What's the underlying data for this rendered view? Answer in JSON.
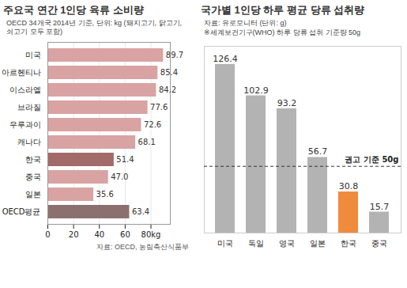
{
  "chart_data": [
    {
      "type": "bar",
      "orientation": "horizontal",
      "title": "주요국 연간 1인당 육류 소비량",
      "subtitle": "OECD 34개국 2014년 기준, 단위: kg (돼지고기, 닭고기, 쇠고기 모두 포함)",
      "source": "자료: OECD, 농림축산식품부",
      "categories": [
        "미국",
        "아르헨티나",
        "이스라엘",
        "브라질",
        "우루과이",
        "캐나다",
        "한국",
        "중국",
        "일본",
        "OECD평균"
      ],
      "values": [
        89.7,
        85.4,
        84.2,
        77.6,
        72.6,
        68.1,
        51.4,
        47.0,
        35.6,
        63.4
      ],
      "value_labels": [
        "89.7",
        "85.4",
        "84.2",
        "77.6",
        "72.6",
        "68.1",
        "51.4",
        "47.0",
        "35.6",
        "63.4"
      ],
      "colors": [
        "#d9a3a3",
        "#d9a3a3",
        "#d9a3a3",
        "#d9a3a3",
        "#d9a3a3",
        "#d9a3a3",
        "#a36a6a",
        "#d9a3a3",
        "#d9a3a3",
        "#8c7070"
      ],
      "xlim": [
        0,
        95
      ],
      "xticks": [
        0,
        20,
        40,
        60,
        {
          "value": 80,
          "label": "80kg"
        }
      ],
      "grid": true,
      "data_labels": true
    },
    {
      "type": "bar",
      "title": "국가별 1인당 하루 평균 당류 섭취량",
      "subtitle": "자료: 유로모니터 (단위: g)",
      "note": "※세계보건기구(WHO) 하루 당류 섭취 기준량 50g",
      "categories": [
        "미국",
        "독일",
        "영국",
        "일본",
        "한국",
        "중국"
      ],
      "values": [
        126.4,
        102.9,
        93.2,
        56.7,
        30.8,
        15.7
      ],
      "colors": [
        "#b3b3b3",
        "#b3b3b3",
        "#b3b3b3",
        "#b3b3b3",
        "#f08a3c",
        "#b3b3b3"
      ],
      "ylim": [
        0,
        140
      ],
      "reference_line": {
        "value": 50,
        "label": "권고 기준 50g"
      },
      "tick_labels": "x",
      "data_labels": true
    }
  ]
}
